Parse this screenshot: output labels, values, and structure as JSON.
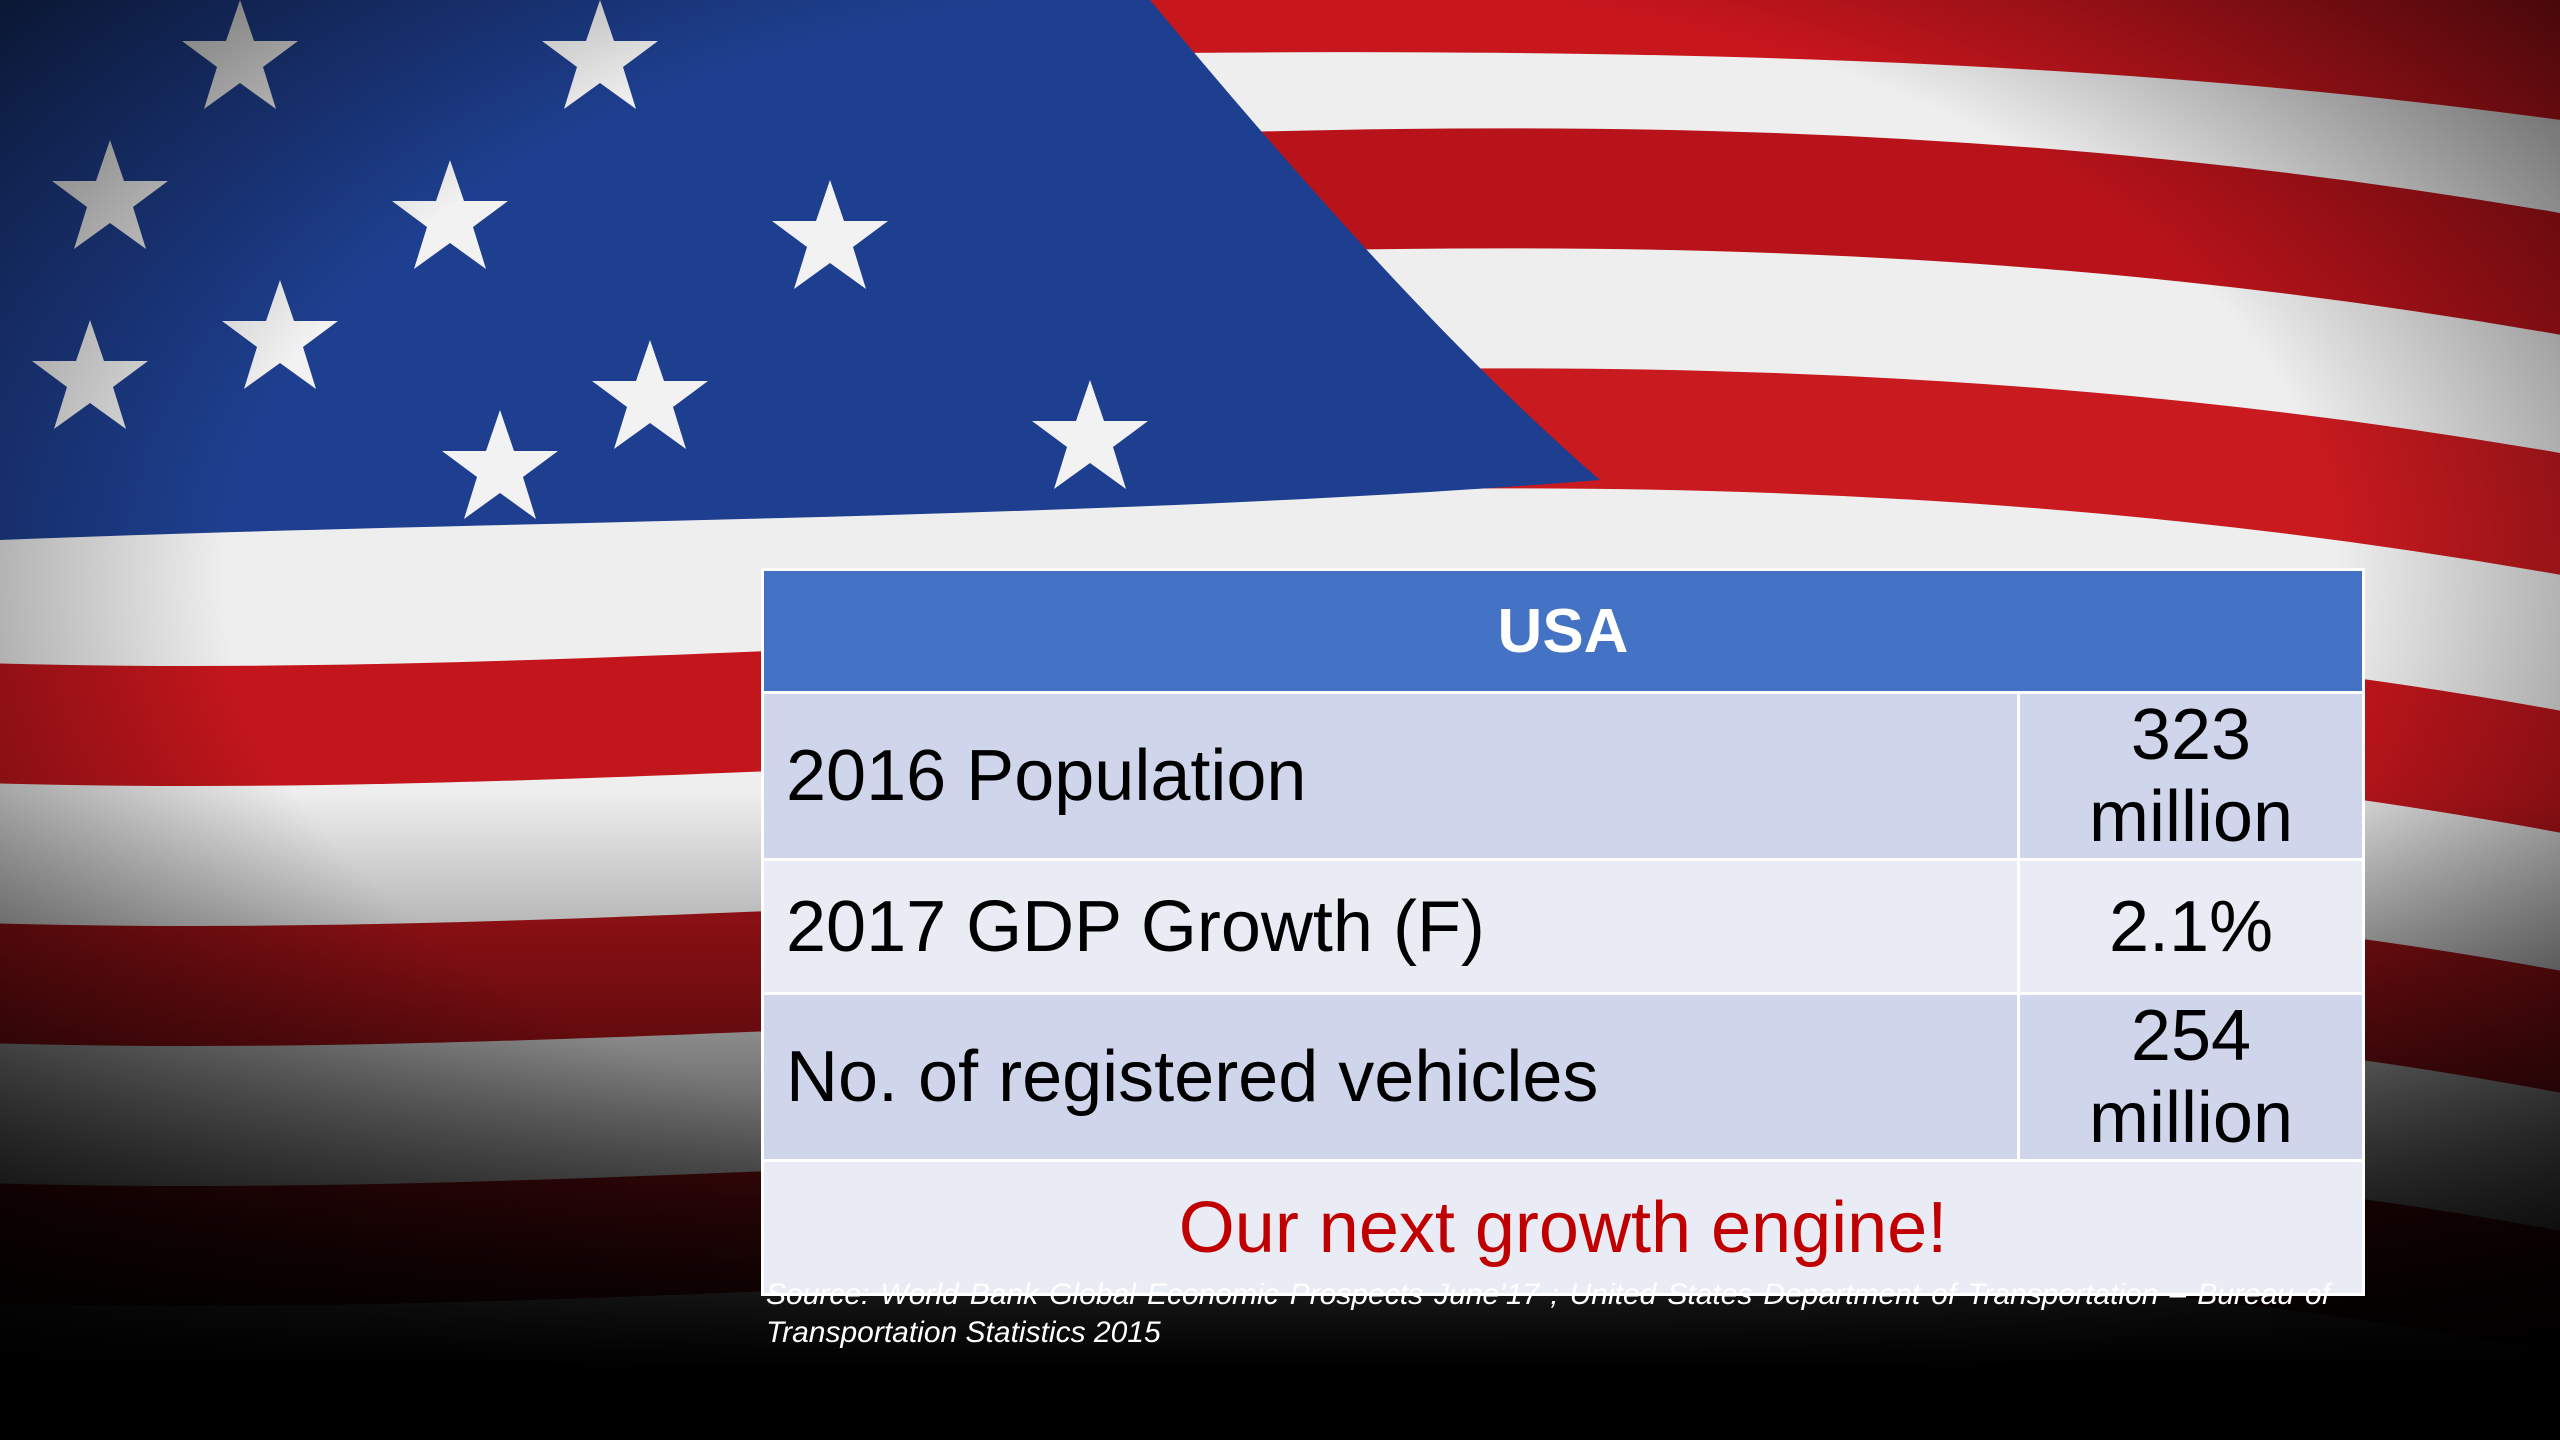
{
  "table": {
    "header": "USA",
    "rows": [
      [
        "2016 Population",
        "323 million"
      ],
      [
        "2017 GDP Growth (F)",
        "2.1%"
      ],
      [
        "No. of registered vehicles",
        "254 million"
      ]
    ],
    "footer": "Our next growth engine!"
  },
  "source": "Source: World Bank Global Economic Prospects June’17 ; United States Department of Transportation – Bureau of Transportation Statistics 2015"
}
